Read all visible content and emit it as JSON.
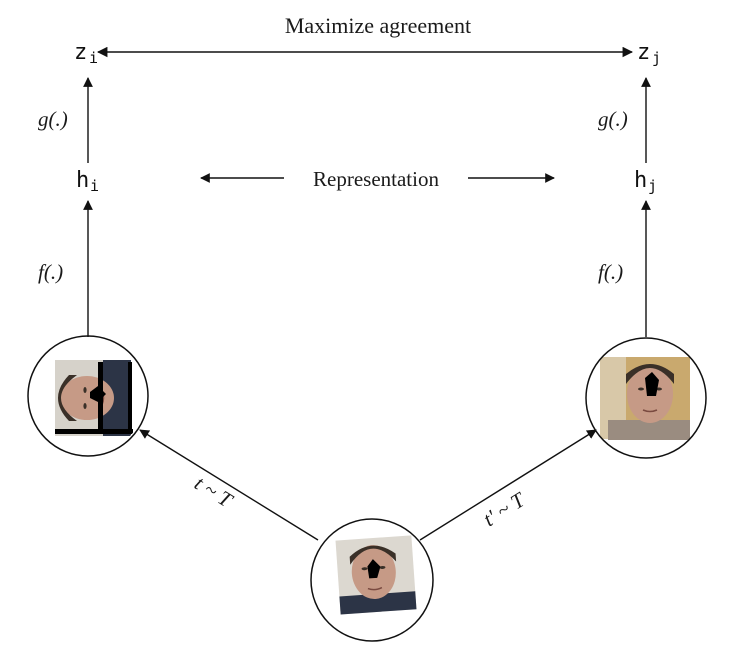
{
  "top_label": "Maximize agreement",
  "middle_label": "Representation",
  "left": {
    "z": "z",
    "z_sub": "i",
    "g": "g(.)",
    "h": "h",
    "h_sub": "i",
    "f": "f(.)",
    "t": "t ~ T"
  },
  "right": {
    "z": "z",
    "z_sub": "j",
    "g": "g(.)",
    "h": "h",
    "h_sub": "j",
    "f": "f(.)",
    "t": "t' ~ T"
  },
  "colors": {
    "line": "#111111",
    "skin": "#c69a86",
    "hair": "#3a3028",
    "shirt_left": "#2c3446",
    "shirt_right": "#9a8c80",
    "bg_left": "#d8d4cc",
    "bg_right": "#c9a96e",
    "occlusion": "#000000"
  }
}
